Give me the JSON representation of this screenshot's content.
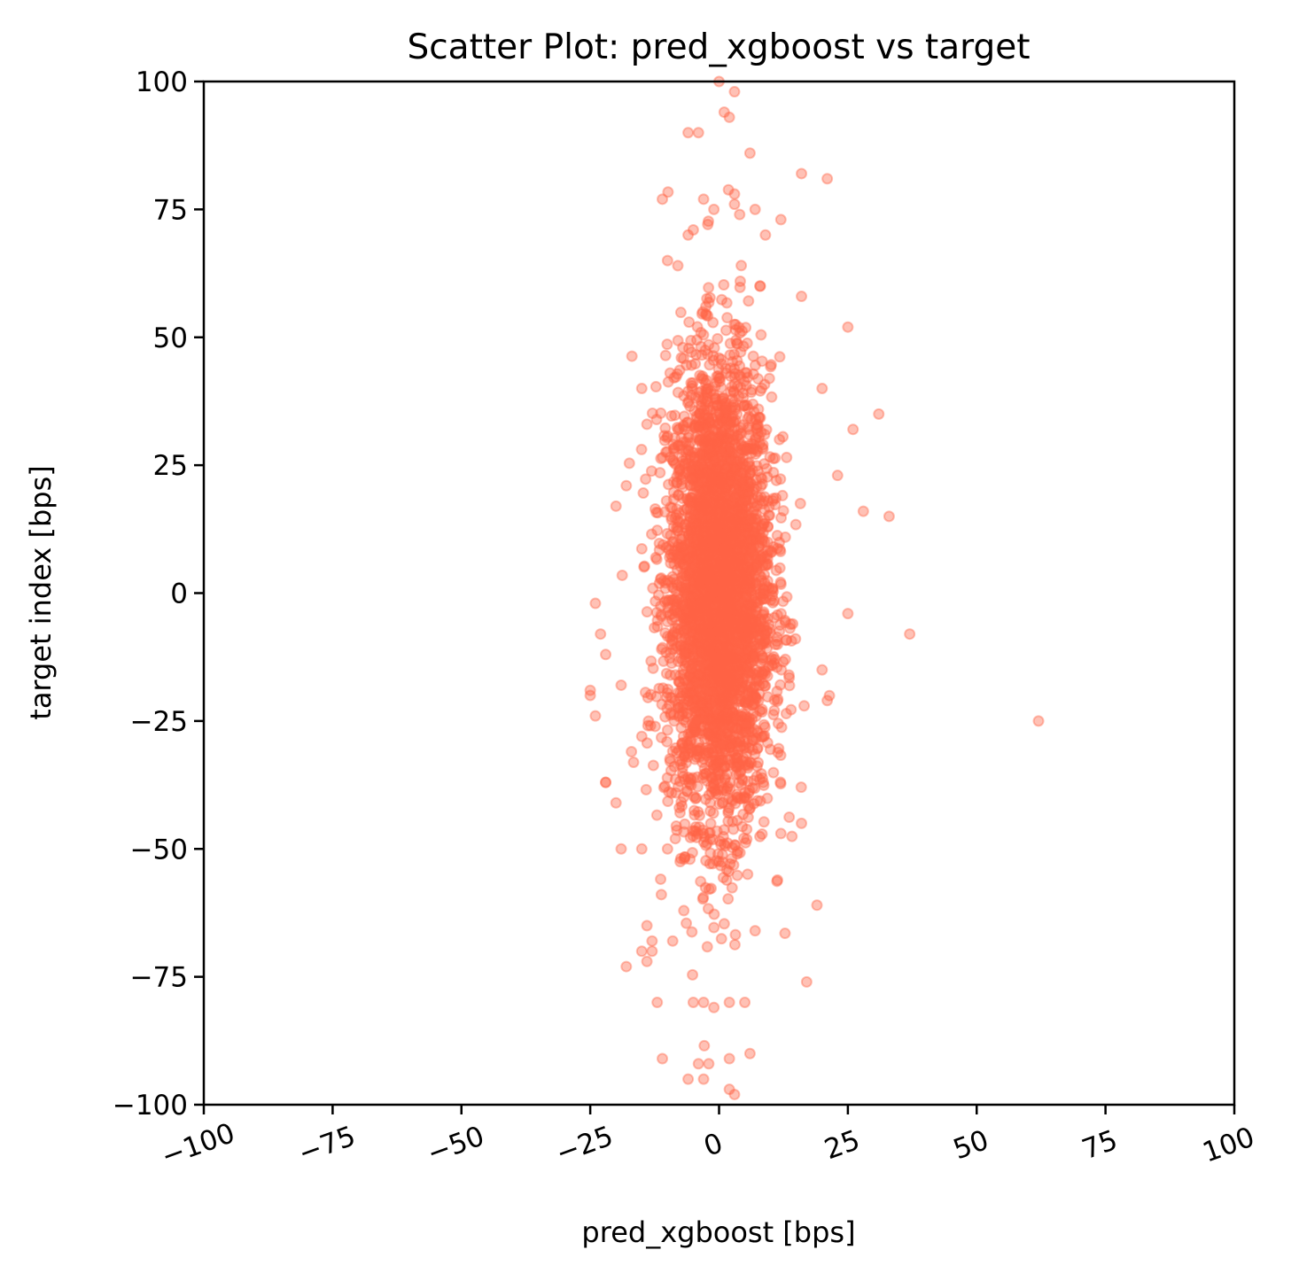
{
  "chart_data": {
    "type": "scatter",
    "title": "Scatter Plot: pred_xgboost vs target",
    "xlabel": "pred_xgboost [bps]",
    "ylabel": "target index [bps]",
    "xlim": [
      -100,
      100
    ],
    "ylim": [
      -100,
      100
    ],
    "xticks": [
      -100,
      -75,
      -50,
      -25,
      0,
      25,
      50,
      75,
      100
    ],
    "yticks": [
      -100,
      -75,
      -50,
      -25,
      0,
      25,
      50,
      75,
      100
    ],
    "xtick_labels": [
      "−100",
      "−75",
      "−50",
      "−25",
      "0",
      "25",
      "50",
      "75",
      "100"
    ],
    "ytick_labels": [
      "−100",
      "−75",
      "−50",
      "−25",
      "0",
      "25",
      "50",
      "75",
      "100"
    ],
    "xtick_rotation_deg": -20,
    "grid": false,
    "legend": "none",
    "marker_color": "#ff6347",
    "marker_alpha": 0.4,
    "core_cloud": {
      "description_note": "dense core of several thousand points approximately centered at the origin",
      "x_mean": 0,
      "x_std": 5,
      "y_mean": 0,
      "y_std": 22,
      "count": 4000
    },
    "series": [
      {
        "x": [
          0,
          3,
          2,
          1,
          -4,
          -6,
          6,
          16,
          21,
          -11,
          -3,
          3,
          -1,
          4,
          -5,
          3,
          -10,
          -8,
          8,
          12,
          7,
          -6,
          9,
          16,
          25,
          20,
          -15,
          -14,
          31,
          26,
          -18,
          -20,
          -24,
          28,
          33,
          23,
          -23,
          -22,
          37,
          25,
          -25,
          -22,
          20,
          -25,
          -24,
          21,
          -15,
          -19,
          62,
          -17,
          -22,
          -20,
          12,
          16,
          -19,
          -10,
          -15,
          19,
          -14,
          -13,
          -9,
          -15,
          17,
          -18,
          -13,
          -14,
          -12,
          -3,
          5,
          2,
          -11,
          -6,
          -4,
          -3,
          2,
          -2,
          3,
          -5,
          -1,
          7,
          2,
          6
        ],
        "y": [
          100,
          98,
          93,
          94,
          90,
          90,
          86,
          82,
          81,
          77,
          77,
          78,
          75,
          74,
          71,
          76,
          65,
          64,
          60,
          73,
          75,
          70,
          70,
          58,
          52,
          40,
          40,
          33,
          35,
          32,
          21,
          17,
          -2,
          16,
          15,
          23,
          -8,
          -12,
          -8,
          -4,
          -19,
          -37,
          -15,
          -20,
          -24,
          -21,
          -28,
          -18,
          -25,
          -31,
          -37,
          -41,
          -47,
          -45,
          -50,
          -50,
          -50,
          -61,
          -65,
          -68,
          -68,
          -70,
          -76,
          -73,
          -70,
          -72,
          -80,
          -80,
          -80,
          -80,
          -91,
          -95,
          -92,
          -95,
          -97,
          -92,
          -98,
          -80,
          -81,
          -66,
          -91,
          -90
        ]
      }
    ]
  }
}
